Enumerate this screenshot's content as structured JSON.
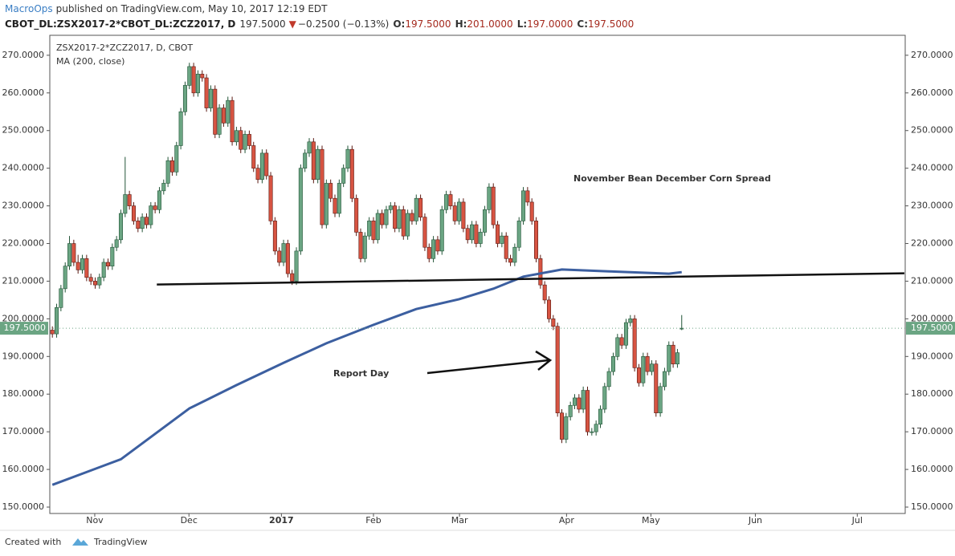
{
  "header": {
    "publisher": "MacroOps",
    "published": "published on TradingView.com, May 10, 2017 12:19 EDT",
    "symbol": "CBOT_DL:ZSX2017-2*CBOT_DL:ZCZ2017, D",
    "last": "197.5000",
    "arrow": "▼",
    "change": "−0.2500 (−0.13%)",
    "o_label": "O:",
    "o": "197.5000",
    "h_label": "H:",
    "h": "201.0000",
    "l_label": "L:",
    "l": "197.0000",
    "c_label": "C:",
    "c": "197.5000"
  },
  "footer": {
    "created": "Created with",
    "brand": "TradingView"
  },
  "chart_data": {
    "type": "candlestick",
    "legend_title": "ZSX2017-2*ZCZ2017, D, CBOT",
    "title": "November Bean December Corn Spread",
    "up_color": "#6ba583",
    "down_color": "#d75442",
    "up_border": "#225437",
    "down_border": "#5b1a13",
    "candles": [
      [
        197,
        198,
        195,
        196
      ],
      [
        196,
        204,
        195,
        203
      ],
      [
        203,
        209,
        202,
        208
      ],
      [
        208,
        215,
        207,
        214
      ],
      [
        214,
        222,
        213,
        220
      ],
      [
        220,
        221,
        214,
        215
      ],
      [
        215,
        217,
        212,
        213
      ],
      [
        213,
        217,
        212,
        216
      ],
      [
        216,
        217,
        210,
        211
      ],
      [
        211,
        212,
        209,
        210
      ],
      [
        210,
        211,
        208,
        209
      ],
      [
        209,
        212,
        208,
        211
      ],
      [
        211,
        216,
        210,
        215
      ],
      [
        215,
        216,
        213,
        214
      ],
      [
        214,
        220,
        213,
        219
      ],
      [
        219,
        222,
        218,
        221
      ],
      [
        221,
        229,
        220,
        228
      ],
      [
        228,
        243,
        227,
        233
      ],
      [
        233,
        234,
        229,
        230
      ],
      [
        230,
        231,
        225,
        226
      ],
      [
        226,
        227,
        223,
        224
      ],
      [
        224,
        228,
        223,
        227
      ],
      [
        227,
        228,
        224,
        225
      ],
      [
        225,
        231,
        224,
        230
      ],
      [
        230,
        231,
        228,
        229
      ],
      [
        229,
        235,
        228,
        234
      ],
      [
        234,
        237,
        233,
        236
      ],
      [
        236,
        243,
        235,
        242
      ],
      [
        242,
        243,
        238,
        239
      ],
      [
        239,
        247,
        238,
        246
      ],
      [
        246,
        256,
        245,
        255
      ],
      [
        255,
        263,
        254,
        262
      ],
      [
        262,
        268,
        261,
        267
      ],
      [
        267,
        268,
        259,
        260
      ],
      [
        260,
        266,
        259,
        265
      ],
      [
        265,
        266,
        263,
        264
      ],
      [
        264,
        265,
        255,
        256
      ],
      [
        256,
        262,
        255,
        261
      ],
      [
        261,
        262,
        248,
        249
      ],
      [
        249,
        257,
        248,
        256
      ],
      [
        256,
        257,
        251,
        252
      ],
      [
        252,
        259,
        251,
        258
      ],
      [
        258,
        259,
        246,
        247
      ],
      [
        247,
        251,
        246,
        250
      ],
      [
        250,
        251,
        244,
        245
      ],
      [
        245,
        250,
        244,
        249
      ],
      [
        249,
        250,
        245,
        246
      ],
      [
        246,
        247,
        239,
        240
      ],
      [
        240,
        241,
        236,
        237
      ],
      [
        237,
        245,
        236,
        244
      ],
      [
        244,
        245,
        237,
        238
      ],
      [
        238,
        239,
        225,
        226
      ],
      [
        226,
        227,
        217,
        218
      ],
      [
        218,
        219,
        214,
        215
      ],
      [
        215,
        221,
        214,
        220
      ],
      [
        220,
        221,
        211,
        212
      ],
      [
        212,
        213,
        209,
        210
      ],
      [
        210,
        219,
        209,
        218
      ],
      [
        218,
        241,
        217,
        240
      ],
      [
        240,
        245,
        239,
        244
      ],
      [
        244,
        248,
        243,
        247
      ],
      [
        247,
        248,
        236,
        237
      ],
      [
        237,
        246,
        236,
        245
      ],
      [
        245,
        246,
        224,
        225
      ],
      [
        225,
        237,
        224,
        236
      ],
      [
        236,
        237,
        231,
        232
      ],
      [
        232,
        233,
        227,
        228
      ],
      [
        228,
        237,
        227,
        236
      ],
      [
        236,
        241,
        235,
        240
      ],
      [
        240,
        246,
        239,
        245
      ],
      [
        245,
        246,
        231,
        232
      ],
      [
        232,
        233,
        222,
        223
      ],
      [
        223,
        224,
        215,
        216
      ],
      [
        216,
        223,
        215,
        222
      ],
      [
        222,
        227,
        221,
        226
      ],
      [
        226,
        227,
        220,
        221
      ],
      [
        221,
        229,
        220,
        228
      ],
      [
        228,
        229,
        224,
        225
      ],
      [
        225,
        230,
        224,
        229
      ],
      [
        229,
        231,
        228,
        230
      ],
      [
        230,
        231,
        223,
        224
      ],
      [
        224,
        230,
        223,
        229
      ],
      [
        229,
        230,
        221,
        222
      ],
      [
        222,
        229,
        221,
        228
      ],
      [
        228,
        229,
        225,
        226
      ],
      [
        226,
        233,
        225,
        232
      ],
      [
        232,
        233,
        226,
        227
      ],
      [
        227,
        228,
        218,
        219
      ],
      [
        219,
        220,
        215,
        216
      ],
      [
        216,
        222,
        215,
        221
      ],
      [
        221,
        222,
        217,
        218
      ],
      [
        218,
        230,
        217,
        229
      ],
      [
        229,
        234,
        228,
        233
      ],
      [
        233,
        234,
        229,
        230
      ],
      [
        230,
        231,
        225,
        226
      ],
      [
        226,
        232,
        225,
        231
      ],
      [
        231,
        232,
        223,
        224
      ],
      [
        224,
        225,
        220,
        221
      ],
      [
        221,
        226,
        220,
        225
      ],
      [
        225,
        226,
        219,
        220
      ],
      [
        220,
        224,
        219,
        223
      ],
      [
        223,
        230,
        222,
        229
      ],
      [
        229,
        236,
        228,
        235
      ],
      [
        235,
        236,
        224,
        225
      ],
      [
        225,
        226,
        219,
        220
      ],
      [
        220,
        223,
        219,
        222
      ],
      [
        222,
        223,
        215,
        216
      ],
      [
        216,
        217,
        214,
        215
      ],
      [
        215,
        220,
        214,
        219
      ],
      [
        219,
        227,
        218,
        226
      ],
      [
        226,
        235,
        225,
        234
      ],
      [
        234,
        235,
        230,
        231
      ],
      [
        231,
        232,
        225,
        226
      ],
      [
        226,
        227,
        215,
        216
      ],
      [
        216,
        217,
        208,
        209
      ],
      [
        209,
        210,
        204,
        205
      ],
      [
        205,
        206,
        199,
        200
      ],
      [
        200,
        201,
        197,
        198
      ],
      [
        198,
        199,
        174,
        175
      ],
      [
        175,
        176,
        167,
        168
      ],
      [
        168,
        175,
        167,
        174
      ],
      [
        174,
        178,
        173,
        177
      ],
      [
        177,
        180,
        176,
        179
      ],
      [
        179,
        180,
        175,
        176
      ],
      [
        176,
        182,
        175,
        181
      ],
      [
        181,
        182,
        169,
        170
      ],
      [
        170,
        171,
        169,
        170
      ],
      [
        170,
        173,
        169,
        172
      ],
      [
        172,
        177,
        171,
        176
      ],
      [
        176,
        183,
        175,
        182
      ],
      [
        182,
        187,
        181,
        186
      ],
      [
        186,
        191,
        185,
        190
      ],
      [
        190,
        196,
        189,
        195
      ],
      [
        195,
        196,
        192,
        193
      ],
      [
        193,
        200,
        192,
        199
      ],
      [
        199,
        201,
        198,
        200
      ],
      [
        200,
        201,
        186,
        187
      ],
      [
        187,
        188,
        182,
        183
      ],
      [
        183,
        191,
        182,
        190
      ],
      [
        190,
        191,
        185,
        186
      ],
      [
        186,
        189,
        185,
        188
      ],
      [
        188,
        189,
        174,
        175
      ],
      [
        175,
        183,
        174,
        182
      ],
      [
        182,
        187,
        181,
        186
      ],
      [
        186,
        194,
        185,
        193
      ],
      [
        193,
        194,
        187,
        188
      ],
      [
        188,
        192,
        187,
        191
      ],
      [
        197.5,
        201,
        197,
        197.5
      ]
    ],
    "ma": {
      "name": "MA (200, close)",
      "color": "#3c5fa0",
      "x": [
        0,
        8,
        16,
        32,
        43,
        54,
        64,
        75,
        85,
        95,
        103,
        110,
        119,
        130,
        144,
        147
      ],
      "values": [
        155.9,
        159.3,
        162.7,
        176.2,
        182.4,
        188.3,
        193.5,
        198.4,
        202.6,
        205.2,
        208,
        211.2,
        213.1,
        212.6,
        212,
        212.4
      ]
    },
    "trendline": {
      "x": [
        24.4,
        199
      ],
      "values": [
        209.1,
        212.1
      ]
    },
    "annotation": "Report Day",
    "last_price": {
      "value": 197.5,
      "label": "197.5000"
    },
    "xlim": [
      -0.6,
      199.2
    ],
    "ylim": [
      148.3,
      275.3
    ],
    "xticks": [
      {
        "value": 9.9,
        "label": "Nov"
      },
      {
        "value": 31.9,
        "label": "Dec"
      },
      {
        "value": 53.5,
        "label": "2017"
      },
      {
        "value": 75,
        "label": "Feb"
      },
      {
        "value": 95.1,
        "label": "Mar"
      },
      {
        "value": 120.1,
        "label": "Apr"
      },
      {
        "value": 139.8,
        "label": "May"
      },
      {
        "value": 164.2,
        "label": "Jun"
      },
      {
        "value": 188,
        "label": "Jul"
      }
    ],
    "yticks": [
      {
        "value": 150,
        "label": "150.0000"
      },
      {
        "value": 160,
        "label": "160.0000"
      },
      {
        "value": 170,
        "label": "170.0000"
      },
      {
        "value": 180,
        "label": "180.0000"
      },
      {
        "value": 190,
        "label": "190.0000"
      },
      {
        "value": 200,
        "label": "200.0000"
      },
      {
        "value": 210,
        "label": "210.0000"
      },
      {
        "value": 220,
        "label": "220.0000"
      },
      {
        "value": 230,
        "label": "230.0000"
      },
      {
        "value": 240,
        "label": "240.0000"
      },
      {
        "value": 250,
        "label": "250.0000"
      },
      {
        "value": 260,
        "label": "260.0000"
      },
      {
        "value": 270,
        "label": "270.0000"
      }
    ]
  }
}
